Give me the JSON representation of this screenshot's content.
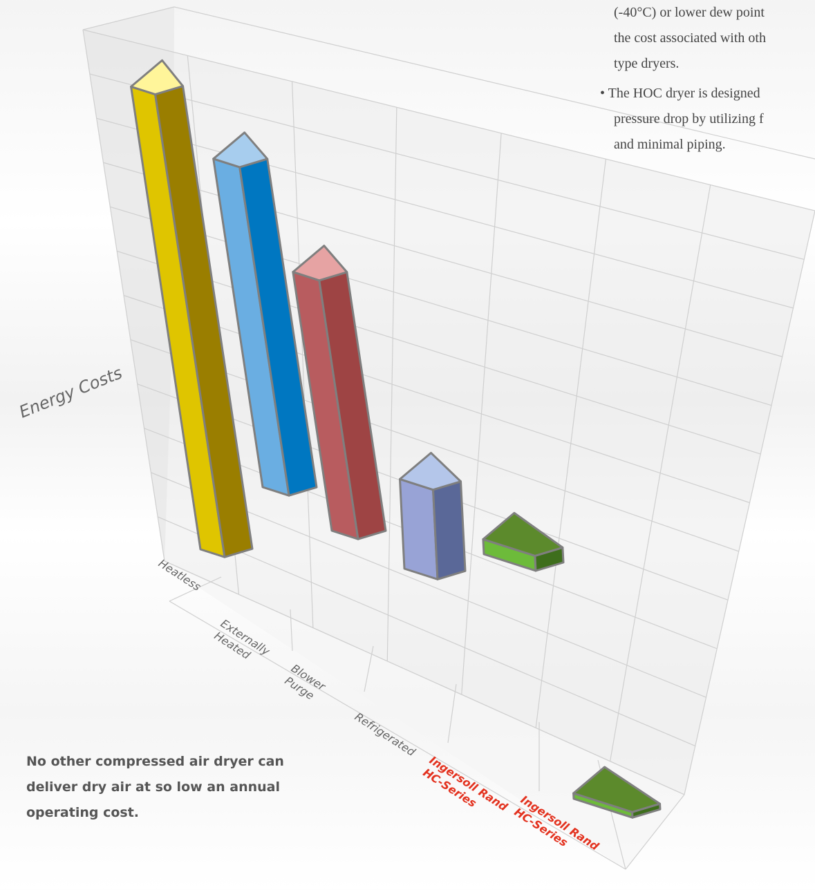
{
  "text": {
    "bullet_lines": [
      "(-40°C) or lower dew point",
      "the cost associated with oth",
      "type dryers.",
      "• The HOC dryer is designed",
      "pressure drop by utilizing f",
      "and minimal piping."
    ],
    "caption": "No other compressed air dryer can deliver dry air at so low an annual operating cost."
  },
  "chart_data": {
    "type": "bar",
    "ylabel": "Energy Costs",
    "ylim": [
      0,
      10
    ],
    "grid": true,
    "categories": [
      "Heatless",
      "Externally Heated",
      "Blower Purge",
      "Refrigerated",
      "Ingersoll Rand HC-Series",
      "Ingersoll Rand HC-Series"
    ],
    "category_lines": [
      [
        "Heatless"
      ],
      [
        "Externally",
        "Heated"
      ],
      [
        "Blower",
        "Purge"
      ],
      [
        "Refrigerated"
      ],
      [
        "Ingersoll Rand",
        "HC-Series"
      ],
      [
        "Ingersoll Rand",
        "HC-Series"
      ]
    ],
    "highlighted_categories": [
      4,
      5
    ],
    "values": [
      9.3,
      6.6,
      5.2,
      1.8,
      0.3,
      0.05
    ],
    "colors": [
      {
        "top": "#fff59a",
        "front": "#dfc500",
        "side": "#9a7e00"
      },
      {
        "top": "#a7cdee",
        "front": "#6aaee2",
        "side": "#0077c1"
      },
      {
        "top": "#e6a3a3",
        "front": "#b85c5f",
        "side": "#9e4444"
      },
      {
        "top": "#b4c6ea",
        "front": "#98a3d6",
        "side": "#5a6898"
      },
      {
        "top": "#5c8a2c",
        "front": "#6dbb3a",
        "side": "#3e6e1c"
      },
      {
        "top": "#5c8a2c",
        "front": "#6dbb3a",
        "side": "#3e6e1c"
      }
    ],
    "highlight_color": "#e3321f",
    "edge_color": "#7f7f7f"
  }
}
